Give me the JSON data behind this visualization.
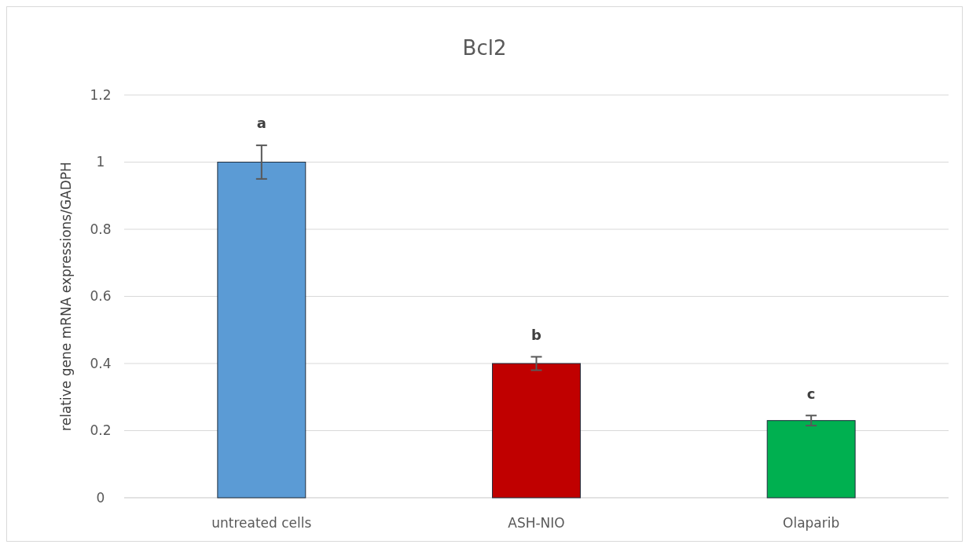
{
  "chart_data": {
    "type": "bar",
    "title": "Bcl2",
    "ylabel": "relative gene mRNA expressions/GADPH",
    "categories": [
      "untreated cells",
      "ASH-NIO",
      "Olaparib"
    ],
    "values": [
      1.0,
      0.4,
      0.23
    ],
    "colors": [
      "#5b9bd5",
      "#c00000",
      "#00b050"
    ],
    "errors": [
      0.05,
      0.02,
      0.015
    ],
    "ylim": [
      0,
      1.2
    ],
    "yticks": [
      0,
      0.2,
      0.4,
      0.6,
      0.8,
      1,
      1.2
    ],
    "grid": "y",
    "annotations": [
      "a",
      "b",
      "c"
    ]
  }
}
